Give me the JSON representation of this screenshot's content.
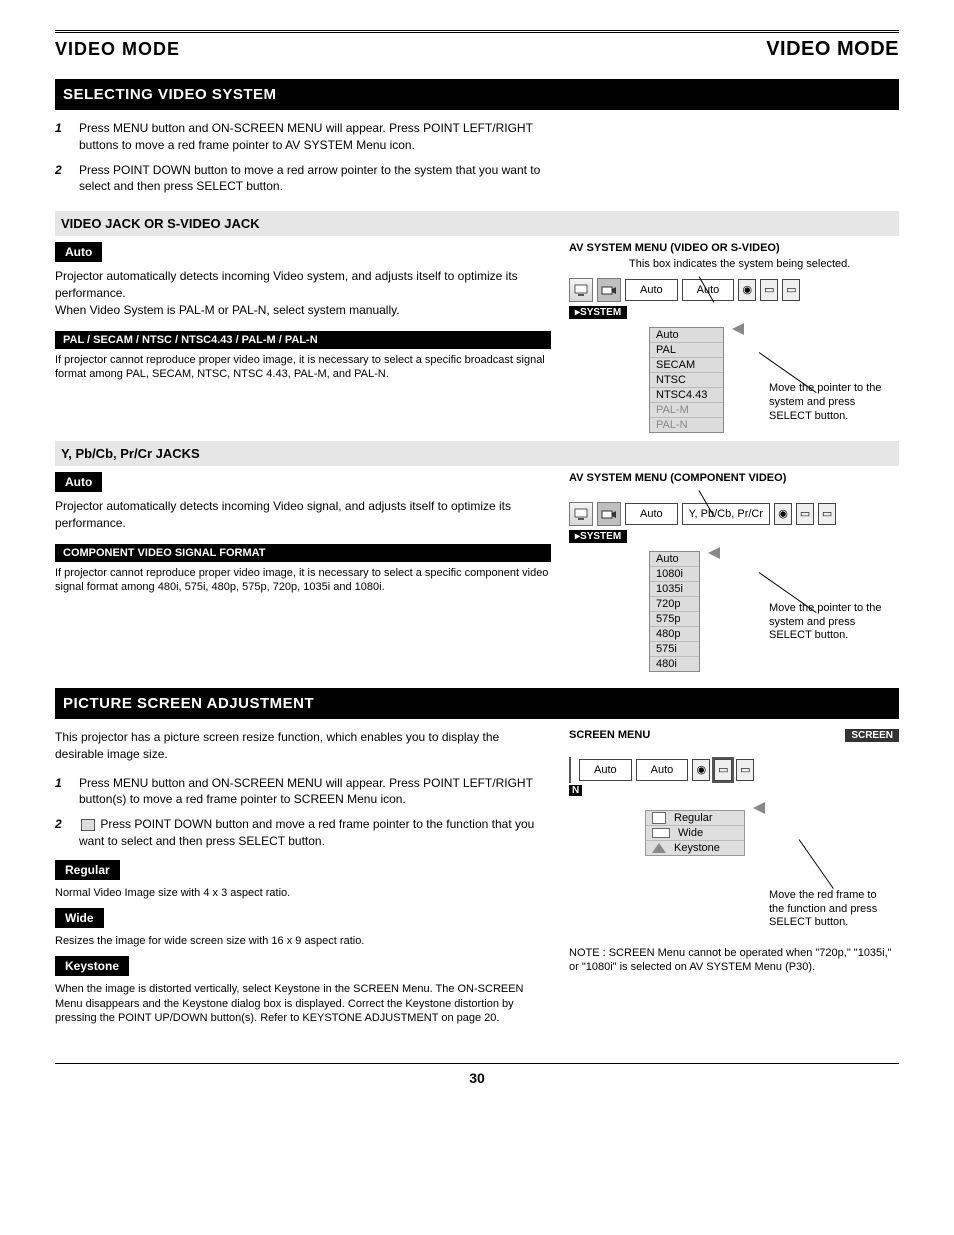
{
  "header": {
    "left": "VIDEO MODE",
    "right": "VIDEO MODE"
  },
  "bar1": "SELECTING VIDEO SYSTEM",
  "intro": [
    "Press MENU button and ON-SCREEN MENU will appear. Press POINT LEFT/RIGHT buttons to move a red frame pointer to AV SYSTEM Menu icon.",
    "Press POINT DOWN button to move a red arrow pointer to the system that you want to select and then press SELECT button."
  ],
  "sectionA": {
    "band": "VIDEO JACK OR S-VIDEO JACK",
    "auto_label": "Auto",
    "auto_text": "Projector automatically detects incoming Video system, and adjusts itself to optimize its performance.\nWhen Video System is PAL-M or PAL-N, select system manually.",
    "note_label": "PAL / SECAM / NTSC / NTSC4.43 / PAL-M / PAL-N",
    "note_text": "If projector cannot reproduce proper video image, it is necessary to select a specific broadcast signal format among PAL, SECAM, NTSC, NTSC 4.43, PAL-M, and PAL-N.",
    "menu_title": "AV SYSTEM MENU (VIDEO OR S-VIDEO)",
    "callout1": "This box indicates the system being selected.",
    "box1": "Auto",
    "box2": "Auto",
    "sys": "SYSTEM",
    "list": [
      "Auto",
      "PAL",
      "SECAM",
      "NTSC",
      "NTSC4.43",
      "PAL-M",
      "PAL-N"
    ],
    "disabled_from": 5,
    "callout2": "Move the pointer to the system and press SELECT button."
  },
  "sectionB": {
    "band": "Y, Pb/Cb, Pr/Cr JACKS",
    "auto_label": "Auto",
    "auto_text": "Projector automatically detects incoming Video signal, and adjusts itself to optimize its performance.",
    "note_label": "COMPONENT VIDEO SIGNAL FORMAT",
    "note_text": "If projector cannot reproduce proper video image, it is necessary to select a specific component video signal format among 480i, 575i, 480p, 575p, 720p, 1035i and 1080i.",
    "menu_title": "AV SYSTEM MENU (COMPONENT VIDEO)",
    "box1": "Auto",
    "box2": "Y, Pb/Cb, Pr/Cr",
    "sys": "SYSTEM",
    "list": [
      "Auto",
      "1080i",
      "1035i",
      "720p",
      "575p",
      "480p",
      "575i",
      "480i"
    ],
    "callout2": "Move the pointer to the system and press SELECT button."
  },
  "bar2": "PICTURE SCREEN ADJUSTMENT",
  "screen": {
    "intro": "This projector has a picture screen resize function, which enables you to display the desirable image size.",
    "steps": [
      "Press MENU button and ON-SCREEN MENU will appear. Press POINT LEFT/RIGHT button(s) to move a red frame pointer to SCREEN Menu icon.",
      "Press POINT DOWN button and move a red frame pointer to the function that you want to select and then press SELECT button."
    ],
    "regular": {
      "label": "Regular",
      "text": "Normal Video Image size with 4 x 3 aspect ratio."
    },
    "wide": {
      "label": "Wide",
      "text": "Resizes the image for wide screen size with 16 x 9 aspect ratio."
    },
    "keystone": {
      "label": "Keystone",
      "text": "When the image is distorted vertically, select Keystone in the SCREEN Menu. The ON-SCREEN Menu disappears and the Keystone dialog box is displayed. Correct the Keystone distortion by pressing the POINT UP/DOWN button(s). Refer to KEYSTONE ADJUSTMENT on page 20."
    },
    "note": "NOTE : SCREEN Menu cannot be operated when \"720p,\" \"1035i,\" or \"1080i\" is selected on AV SYSTEM Menu (P30).",
    "menu_title": "SCREEN MENU",
    "screen_tag": "SCREEN",
    "box1": "Auto",
    "box2": "Auto",
    "n_tag": "N",
    "list": [
      "Regular",
      "Wide",
      "Keystone"
    ],
    "callout": "Move the red frame to the function and press SELECT button."
  },
  "page": "30"
}
